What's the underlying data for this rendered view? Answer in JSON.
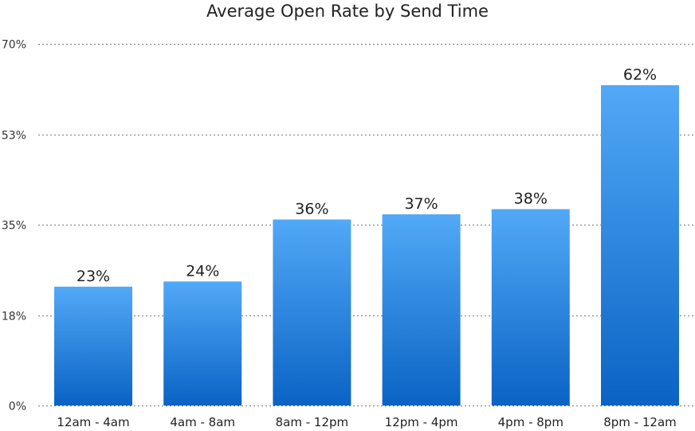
{
  "chart_data": {
    "type": "bar",
    "title": "Average Open Rate by Send Time",
    "xlabel": "",
    "ylabel": "",
    "categories": [
      "12am - 4am",
      "4am - 8am",
      "8am - 12pm",
      "12pm - 4pm",
      "4pm - 8pm",
      "8pm - 12am"
    ],
    "values": [
      23,
      24,
      36,
      37,
      38,
      62
    ],
    "data_labels": [
      "23%",
      "24%",
      "36%",
      "37%",
      "38%",
      "62%"
    ],
    "ylim": [
      0,
      70
    ],
    "yticks": [
      0,
      17.5,
      35,
      52.5,
      70
    ],
    "ytick_labels": [
      "0%",
      "18%",
      "35%",
      "53%",
      "70%"
    ],
    "grid": "horizontal dotted",
    "bar_color_top": "#52a9f7",
    "bar_color_bottom": "#0a63c4"
  }
}
